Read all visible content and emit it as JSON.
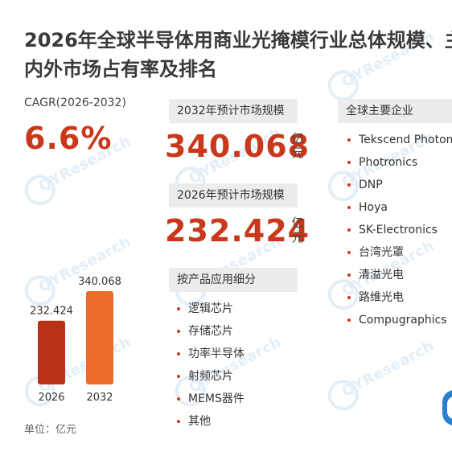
{
  "title": {
    "line1": "2026年全球半导体用商业光掩模行业总体规模、主",
    "line2": "内外市场占有率及排名"
  },
  "cagr": {
    "label": "CAGR(2026-2032)",
    "value": "6.6%"
  },
  "forecast_2032": {
    "label": "2032年预计市场规模",
    "value": "340.068",
    "unit": "亿元"
  },
  "size_2026": {
    "label": "2026年预计市场规模",
    "value": "232.424",
    "unit": "亿元"
  },
  "segments": {
    "label": "按产品应用细分",
    "items": [
      "逻辑芯片",
      "存储芯片",
      "功率半导体",
      "射频芯片",
      "MEMS器件",
      "其他"
    ]
  },
  "companies": {
    "label": "全球主要企业",
    "items": [
      "Tekscend Photom",
      "Photronics",
      "DNP",
      "Hoya",
      "SK-Electronics",
      "台湾光罩",
      "清溢光电",
      "路维光电",
      "Compugraphics"
    ]
  },
  "unit_note": "单位：亿元",
  "watermark_text": "QYResearch",
  "colors": {
    "accent": "#c9381a",
    "bar_2026": "#b93215",
    "bar_2032": "#ec6a2c",
    "label_bg": "#ececec",
    "watermark": "#2a7fd0"
  },
  "chart_data": {
    "type": "bar",
    "categories": [
      "2026",
      "2032"
    ],
    "values": [
      232.424,
      340.068
    ],
    "value_labels": [
      "232.424",
      "340.068"
    ],
    "title": "",
    "xlabel": "",
    "ylabel": "",
    "ylim": [
      0,
      340.068
    ],
    "grid": false,
    "legend": "none"
  }
}
